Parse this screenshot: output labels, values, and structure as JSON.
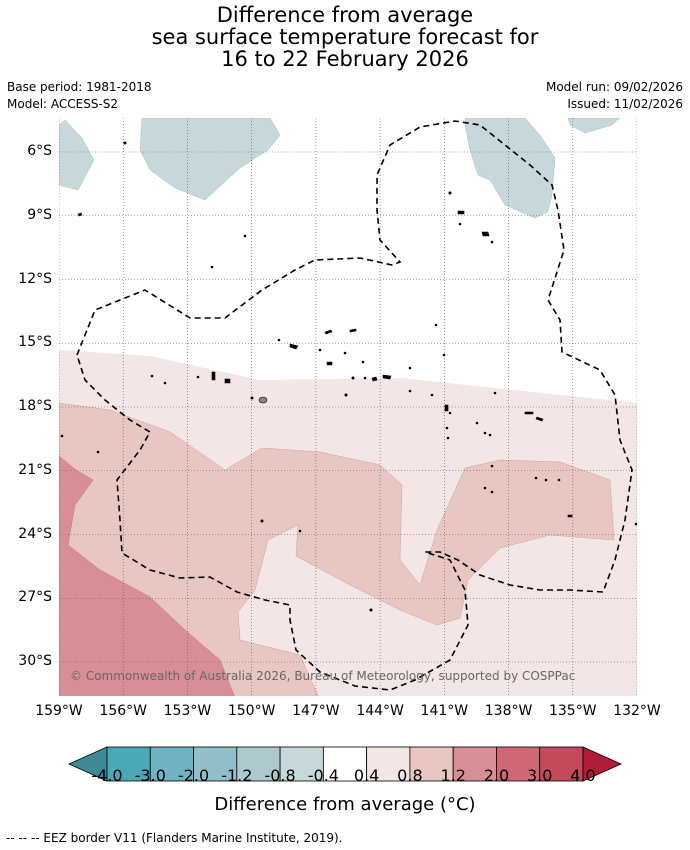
{
  "title": {
    "line1": "Difference from average",
    "line2": "sea surface temperature forecast for",
    "line3": "16 to 22 February 2026"
  },
  "meta": {
    "base_period": "Base period: 1981-2018",
    "model": "Model: ACCESS-S2",
    "model_run": "Model run: 09/02/2026",
    "issued": "Issued: 11/02/2026"
  },
  "map": {
    "lon_range": [
      -159,
      -132
    ],
    "lat_range": [
      -31.6,
      -4.4
    ],
    "lat_ticks": [
      "6°S",
      "9°S",
      "12°S",
      "15°S",
      "18°S",
      "21°S",
      "24°S",
      "27°S",
      "30°S"
    ],
    "lon_ticks": [
      "159°W",
      "156°W",
      "153°W",
      "150°W",
      "147°W",
      "144°W",
      "141°W",
      "138°W",
      "135°W",
      "132°W"
    ],
    "copyright": "© Commonwealth of Australia 2026, Bureau of Meteorology, supported by COSPPac",
    "eez_color": "#000000",
    "land_color": "#000000"
  },
  "colorbar": {
    "tick_labels": [
      "-4.0",
      "-3.0",
      "-2.0",
      "-1.2",
      "-0.8",
      "-0.4",
      "0.4",
      "0.8",
      "1.2",
      "2.0",
      "3.0",
      "4.0"
    ],
    "colors": [
      "#3e8a98",
      "#4ba8b8",
      "#6fb3c2",
      "#8fbfc9",
      "#adc9cd",
      "#c6d8dc",
      "#ffffff",
      "#f3e6e5",
      "#e8c6c2",
      "#d98e96",
      "#cd6874",
      "#c34a5a",
      "#b01c3a"
    ],
    "title": "Difference from average (°C)"
  },
  "footnote": "--  --  -- EEZ border V11 (Flanders Marine Institute, 2019)."
}
